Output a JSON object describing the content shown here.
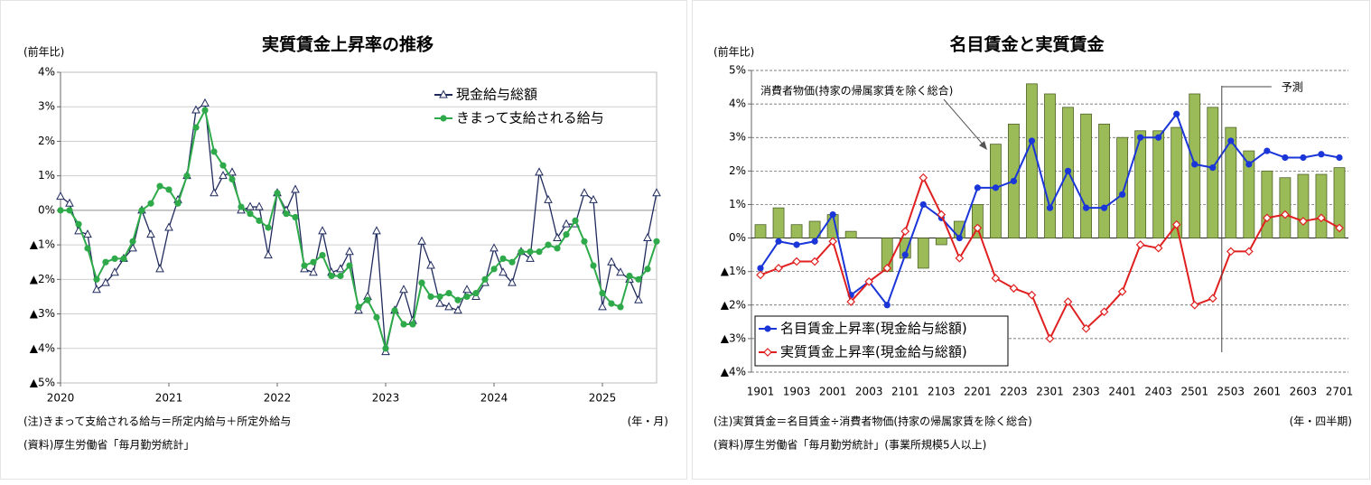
{
  "chart_data": [
    {
      "type": "line",
      "title": "実質賃金上昇率の推移",
      "y_label": "(前年比)",
      "x_unit": "(年・月)",
      "notes": [
        "(注)きまって支給される給与＝所定内給与＋所定外給与",
        "(資料)厚生労働省「毎月勤労統計」"
      ],
      "categories": [
        "2020",
        null,
        null,
        null,
        null,
        null,
        null,
        null,
        null,
        null,
        null,
        null,
        "2021",
        null,
        null,
        null,
        null,
        null,
        null,
        null,
        null,
        null,
        null,
        null,
        "2022",
        null,
        null,
        null,
        null,
        null,
        null,
        null,
        null,
        null,
        null,
        null,
        "2023",
        null,
        null,
        null,
        null,
        null,
        null,
        null,
        null,
        null,
        null,
        null,
        "2024",
        null,
        null,
        null,
        null,
        null,
        null,
        null,
        null,
        null,
        null,
        null,
        "2025",
        null,
        null,
        null,
        null,
        null,
        null
      ],
      "ylim": [
        -5,
        4
      ],
      "yticks": [
        {
          "value": -5,
          "label": "▲5%"
        },
        {
          "value": -4,
          "label": "▲4%"
        },
        {
          "value": -3,
          "label": "▲3%"
        },
        {
          "value": -2,
          "label": "▲2%"
        },
        {
          "value": -1,
          "label": "▲1%"
        },
        {
          "value": 0,
          "label": "0%"
        },
        {
          "value": 1,
          "label": "1%"
        },
        {
          "value": 2,
          "label": "2%"
        },
        {
          "value": 3,
          "label": "3%"
        },
        {
          "value": 4,
          "label": "4%"
        }
      ],
      "grid": true,
      "legend": "upper right",
      "series": [
        {
          "name": "現金給与総額",
          "color": "#1f2a5c",
          "marker": "triangle-open",
          "values": [
            0.4,
            0.2,
            -0.6,
            -0.7,
            -2.3,
            -2.1,
            -1.8,
            -1.4,
            -1.1,
            0.0,
            -0.7,
            -1.7,
            -0.5,
            0.3,
            1.0,
            2.9,
            3.1,
            0.5,
            1.0,
            1.1,
            0.0,
            0.1,
            0.1,
            -1.3,
            0.5,
            0.0,
            0.6,
            -1.7,
            -1.8,
            -0.6,
            -1.8,
            -1.7,
            -1.2,
            -2.9,
            -2.5,
            -0.6,
            -4.1,
            -2.9,
            -2.3,
            -3.2,
            -0.9,
            -1.6,
            -2.7,
            -2.8,
            -2.9,
            -2.3,
            -2.5,
            -2.1,
            -1.1,
            -1.8,
            -2.1,
            -1.2,
            -1.4,
            1.1,
            0.3,
            -0.8,
            -0.4,
            -0.4,
            0.5,
            0.3,
            -2.8,
            -1.5,
            -1.8,
            -2.0,
            -2.6,
            -0.8,
            0.5
          ]
        },
        {
          "name": "きまって支給される給与",
          "color": "#2eaa4a",
          "marker": "circle",
          "values": [
            0.0,
            0.0,
            -0.4,
            -1.1,
            -2.0,
            -1.5,
            -1.4,
            -1.4,
            -0.9,
            0.0,
            0.2,
            0.7,
            0.6,
            0.2,
            1.0,
            2.4,
            2.9,
            1.7,
            1.3,
            0.9,
            0.1,
            -0.1,
            -0.3,
            -0.5,
            0.5,
            -0.1,
            -0.2,
            -1.6,
            -1.5,
            -1.3,
            -1.9,
            -1.9,
            -1.6,
            -2.8,
            -2.6,
            -3.1,
            -4.0,
            -2.9,
            -3.3,
            -3.3,
            -2.1,
            -2.5,
            -2.5,
            -2.4,
            -2.6,
            -2.5,
            -2.4,
            -2.0,
            -1.7,
            -1.4,
            -1.5,
            -1.2,
            -1.2,
            -1.2,
            -1.0,
            -1.1,
            -0.7,
            -0.3,
            -0.9,
            -1.6,
            -2.4,
            -2.7,
            -2.8,
            -1.9,
            -2.0,
            -1.7,
            -0.9
          ]
        }
      ]
    },
    {
      "type": "combo",
      "title": "名目賃金と実質賃金",
      "y_label": "(前年比)",
      "x_unit": "(年・四半期)",
      "notes": [
        "(注)実質賃金＝名目賃金÷消費者物価(持家の帰属家賃を除く総合)",
        "(資料)厚生労働省「毎月勤労統計」(事業所規模5人以上)"
      ],
      "annotations": [
        "予測"
      ],
      "categories": [
        "1901",
        null,
        "1903",
        null,
        "2001",
        null,
        "2003",
        null,
        "2101",
        null,
        "2103",
        null,
        "2201",
        null,
        "2203",
        null,
        "2301",
        null,
        "2303",
        null,
        "2401",
        null,
        "2403",
        null,
        "2501",
        null,
        "2503",
        null,
        "2601",
        null,
        "2603",
        null,
        "2701"
      ],
      "ylim": [
        -4,
        5
      ],
      "yticks": [
        {
          "value": -4,
          "label": "▲4%"
        },
        {
          "value": -3,
          "label": "▲3%"
        },
        {
          "value": -2,
          "label": "▲2%"
        },
        {
          "value": -1,
          "label": "▲1%"
        },
        {
          "value": 0,
          "label": "0%"
        },
        {
          "value": 1,
          "label": "1%"
        },
        {
          "value": 2,
          "label": "2%"
        },
        {
          "value": 3,
          "label": "3%"
        },
        {
          "value": 4,
          "label": "4%"
        },
        {
          "value": 5,
          "label": "5%"
        }
      ],
      "grid": true,
      "grid_style": "dashed",
      "legend": "lower left",
      "series": [
        {
          "name": "消費者物価(持家の帰属家賃を除く総合)",
          "mark": "bar",
          "color": "#9bbb59",
          "values": [
            0.4,
            0.9,
            0.4,
            0.5,
            0.7,
            0.2,
            0.0,
            -1.0,
            -0.6,
            -0.9,
            -0.2,
            0.5,
            1.0,
            2.8,
            3.4,
            4.6,
            4.3,
            3.9,
            3.7,
            3.4,
            3.0,
            3.2,
            3.2,
            3.3,
            4.3,
            3.9,
            3.3,
            2.6,
            2.0,
            1.8,
            1.9,
            1.9,
            2.1
          ]
        },
        {
          "name": "名目賃金上昇率(現金給与総額)",
          "mark": "line",
          "color": "#1a35d8",
          "marker": "circle",
          "values": [
            -0.9,
            -0.1,
            -0.2,
            -0.1,
            0.7,
            -1.7,
            -1.3,
            -2.0,
            -0.5,
            1.0,
            0.6,
            0.0,
            1.5,
            1.5,
            1.7,
            2.9,
            0.9,
            2.0,
            0.9,
            0.9,
            1.3,
            3.0,
            3.0,
            3.7,
            2.2,
            2.1,
            2.9,
            2.2,
            2.6,
            2.4,
            2.4,
            2.5,
            2.4
          ]
        },
        {
          "name": "実質賃金上昇率(現金給与総額)",
          "mark": "line",
          "color": "#e02020",
          "marker": "diamond-open",
          "values": [
            -1.1,
            -0.9,
            -0.7,
            -0.7,
            -0.1,
            -1.9,
            -1.3,
            -0.9,
            0.2,
            1.8,
            0.7,
            -0.6,
            0.3,
            -1.2,
            -1.5,
            -1.7,
            -3.0,
            -1.9,
            -2.7,
            -2.2,
            -1.6,
            -0.2,
            -0.3,
            0.4,
            -2.0,
            -1.8,
            -0.4,
            -0.4,
            0.6,
            0.7,
            0.5,
            0.6,
            0.3
          ]
        }
      ]
    }
  ]
}
